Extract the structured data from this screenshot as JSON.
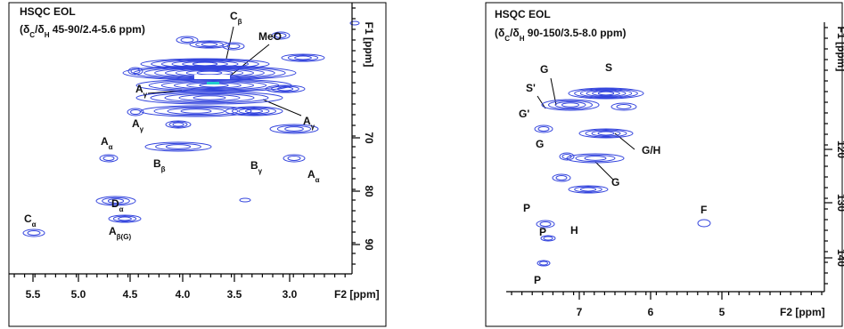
{
  "panels": [
    {
      "title": "HSQC EOL",
      "subtitle_parts": [
        {
          "t": "(δ"
        },
        {
          "s": "C"
        },
        {
          "t": "/δ"
        },
        {
          "s": "H"
        },
        {
          "t": " 45-90/2.4-5.6 ppm)"
        }
      ],
      "x_label": "F2 [ppm]",
      "y_label": "F1 [ppm]",
      "x_ticks": [
        "5.5",
        "5.0",
        "4.5",
        "4.0",
        "3.5",
        "3.0"
      ],
      "y_ticks": [
        "70",
        "80",
        "90"
      ],
      "peaks": [
        {
          "m": "C",
          "s": "β"
        },
        {
          "m": "MeO",
          "s": ""
        },
        {
          "m": "A",
          "s": "γ"
        },
        {
          "m": "A",
          "s": "γ"
        },
        {
          "m": "A",
          "s": "γ"
        },
        {
          "m": "A",
          "s": "α"
        },
        {
          "m": "B",
          "s": "β"
        },
        {
          "m": "B",
          "s": "γ"
        },
        {
          "m": "A",
          "s": "α"
        },
        {
          "m": "D",
          "s": "α"
        },
        {
          "m": "A",
          "s": "β(G)"
        },
        {
          "m": "C",
          "s": "α"
        }
      ]
    },
    {
      "title": "HSQC EOL",
      "subtitle_parts": [
        {
          "t": "(δ"
        },
        {
          "s": "C"
        },
        {
          "t": "/δ"
        },
        {
          "s": "H"
        },
        {
          "t": " 90-150/3.5-8.0 ppm)"
        }
      ],
      "x_label": "F2 [ppm]",
      "y_label": "F1 [ppm]",
      "x_ticks": [
        "7",
        "6",
        "5"
      ],
      "y_ticks": [
        "120",
        "130",
        "140"
      ],
      "peaks": [
        {
          "m": "G",
          "s": ""
        },
        {
          "m": "S",
          "s": ""
        },
        {
          "m": "S'",
          "s": ""
        },
        {
          "m": "G'",
          "s": ""
        },
        {
          "m": "G",
          "s": ""
        },
        {
          "m": "G/H",
          "s": ""
        },
        {
          "m": "G",
          "s": ""
        },
        {
          "m": "P",
          "s": ""
        },
        {
          "m": "P",
          "s": ""
        },
        {
          "m": "H",
          "s": ""
        },
        {
          "m": "F",
          "s": ""
        },
        {
          "m": "P",
          "s": ""
        }
      ]
    }
  ]
}
